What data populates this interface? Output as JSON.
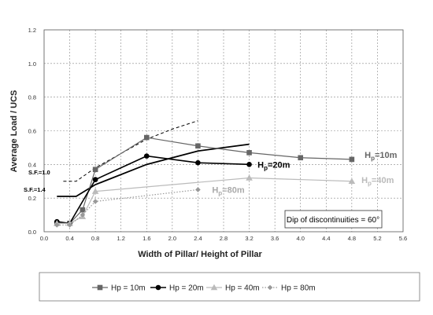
{
  "chart_data": {
    "type": "line",
    "xlabel": "Width of Pillar/ Height of Pillar",
    "ylabel": "Average Load / UCS",
    "xlim": [
      0,
      5.6
    ],
    "ylim": [
      0,
      1.2
    ],
    "x_ticks": [
      "0.0",
      "0.4",
      "0.8",
      "1.2",
      "1.6",
      "2.0",
      "2.4",
      "2.8",
      "3.2",
      "3.6",
      "4.0",
      "4.4",
      "4.8",
      "5.2",
      "5.6"
    ],
    "y_ticks": [
      "0.0",
      "0.2",
      "0.4",
      "0.6",
      "0.8",
      "1.0",
      "1.2"
    ],
    "grid": "dashed",
    "legend_position": "bottom",
    "series": [
      {
        "name": "Hp = 10m",
        "color": "#666666",
        "marker": "square",
        "line": "solid",
        "x": [
          0.2,
          0.4,
          0.6,
          0.8,
          1.6,
          2.4,
          3.2,
          4.0,
          4.8
        ],
        "y": [
          0.05,
          0.05,
          0.13,
          0.37,
          0.56,
          0.51,
          0.47,
          0.44,
          0.43
        ]
      },
      {
        "name": "Hp = 20m",
        "color": "#000000",
        "marker": "circle",
        "line": "solid",
        "x": [
          0.2,
          0.4,
          0.8,
          1.6,
          2.4,
          3.2
        ],
        "y": [
          0.06,
          0.05,
          0.31,
          0.45,
          0.41,
          0.4
        ]
      },
      {
        "name": "Hp = 40m",
        "color": "#bbbbbb",
        "marker": "triangle",
        "line": "solid",
        "x": [
          0.2,
          0.4,
          0.6,
          0.8,
          3.2,
          4.8
        ],
        "y": [
          0.05,
          0.05,
          0.09,
          0.24,
          0.32,
          0.3
        ]
      },
      {
        "name": "Hp = 80m",
        "color": "#999999",
        "marker": "diamond",
        "line": "dotted",
        "x": [
          0.2,
          0.4,
          0.6,
          0.8,
          2.4
        ],
        "y": [
          0.04,
          0.04,
          0.1,
          0.18,
          0.25
        ]
      }
    ],
    "safety_factor_curves": [
      {
        "label": "S.F.=1.0",
        "line": "dashed",
        "x": [
          0.3,
          0.5,
          0.8,
          1.6,
          2.0,
          2.4
        ],
        "y": [
          0.3,
          0.3,
          0.38,
          0.55,
          0.61,
          0.66
        ]
      },
      {
        "label": "S.F.=1.4",
        "line": "solid",
        "x": [
          0.2,
          0.5,
          0.8,
          1.6,
          2.4,
          3.2
        ],
        "y": [
          0.21,
          0.21,
          0.28,
          0.4,
          0.48,
          0.52
        ]
      }
    ],
    "series_labels": [
      {
        "base": "H",
        "sub": "p",
        "tail": "=10m",
        "color": "#666666"
      },
      {
        "base": "H",
        "sub": "p",
        "tail": "=20m",
        "color": "#000000"
      },
      {
        "base": "H",
        "sub": "p",
        "tail": "=40m",
        "color": "#bbbbbb"
      },
      {
        "base": "H",
        "sub": "p",
        "tail": "=80m",
        "color": "#aaaaaa"
      }
    ],
    "annotation": "Dip of discontinuities = 60°"
  }
}
